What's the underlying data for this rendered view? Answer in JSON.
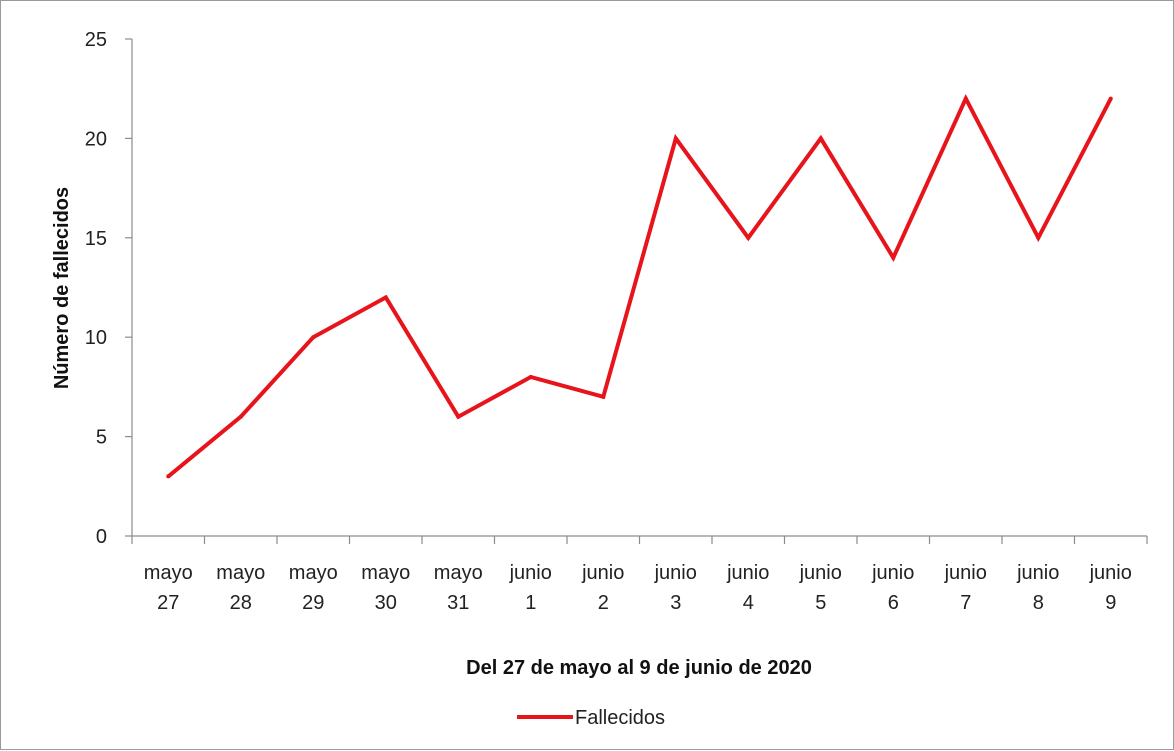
{
  "chart_data": {
    "type": "line",
    "categories": [
      [
        "mayo",
        "27"
      ],
      [
        "mayo",
        "28"
      ],
      [
        "mayo",
        "29"
      ],
      [
        "mayo",
        "30"
      ],
      [
        "mayo",
        "31"
      ],
      [
        "junio",
        "1"
      ],
      [
        "junio",
        "2"
      ],
      [
        "junio",
        "3"
      ],
      [
        "junio",
        "4"
      ],
      [
        "junio",
        "5"
      ],
      [
        "junio",
        "6"
      ],
      [
        "junio",
        "7"
      ],
      [
        "junio",
        "8"
      ],
      [
        "junio",
        "9"
      ]
    ],
    "series": [
      {
        "name": "Fallecidos",
        "color": "#e8141b",
        "values": [
          3,
          6,
          10,
          12,
          6,
          8,
          7,
          20,
          15,
          20,
          14,
          22,
          15,
          22
        ]
      }
    ],
    "xlabel": "Del 27 de mayo al 9 de junio de 2020",
    "ylabel": "Número de fallecidos",
    "ylim": [
      0,
      25
    ],
    "yticks": [
      0,
      5,
      10,
      15,
      20,
      25
    ],
    "grid": false,
    "legend_position": "bottom"
  }
}
